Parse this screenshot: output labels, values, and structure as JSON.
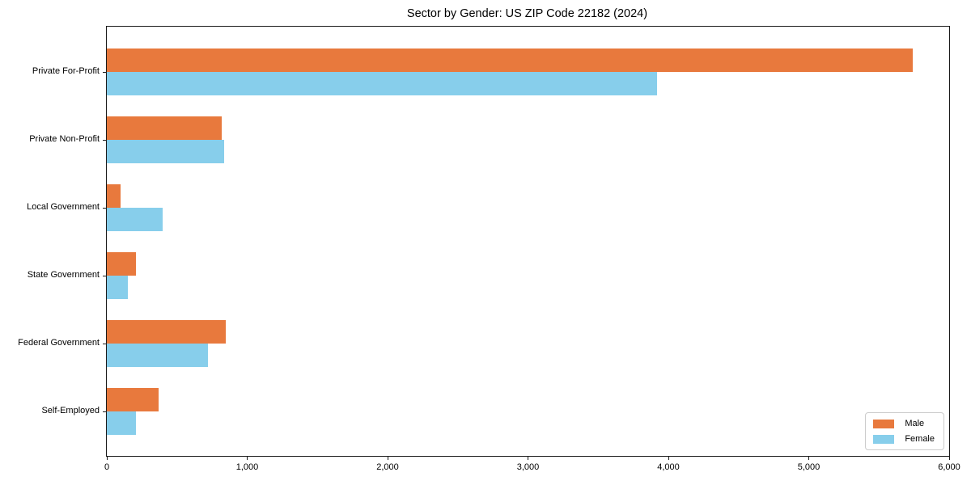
{
  "chart_data": {
    "type": "bar",
    "orientation": "horizontal",
    "title": "Sector by Gender: US ZIP Code 22182 (2024)",
    "categories": [
      "Private For-Profit",
      "Private Non-Profit",
      "Local Government",
      "State Government",
      "Federal Government",
      "Self-Employed"
    ],
    "series": [
      {
        "name": "Male",
        "color": "#e8793d",
        "values": [
          5740,
          820,
          100,
          210,
          845,
          370
        ]
      },
      {
        "name": "Female",
        "color": "#87ceeb",
        "values": [
          3920,
          835,
          400,
          150,
          720,
          210
        ]
      }
    ],
    "xlabel": "",
    "ylabel": "",
    "xlim": [
      0,
      6000
    ],
    "xticks": [
      0,
      1000,
      2000,
      3000,
      4000,
      5000,
      6000
    ],
    "xtick_labels": [
      "0",
      "1,000",
      "2,000",
      "3,000",
      "4,000",
      "5,000",
      "6,000"
    ],
    "grid": false,
    "legend": {
      "position": "lower right",
      "items": [
        {
          "label": "Male",
          "color": "#e8793d"
        },
        {
          "label": "Female",
          "color": "#87ceeb"
        }
      ]
    },
    "background_color": "#ffffff",
    "axis_color": "#1a1a1a"
  }
}
